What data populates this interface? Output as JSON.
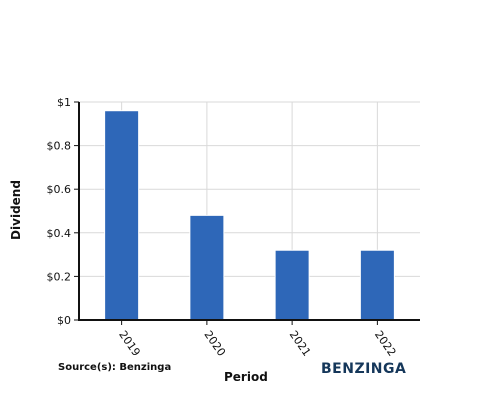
{
  "source_text": "Source(s): Benzinga",
  "brand_text": "BENZINGA",
  "colors": {
    "bar": "#2e67b8",
    "grid": "#d9d9d9",
    "axis": "#111111",
    "brand": "#15375a"
  },
  "chart_data": {
    "type": "bar",
    "categories": [
      "2019",
      "2020",
      "2021",
      "2022"
    ],
    "values": [
      0.96,
      0.48,
      0.32,
      0.32
    ],
    "title": "",
    "xlabel": "Period",
    "ylabel": "Dividend",
    "ylim": [
      0,
      1
    ],
    "yticks": [
      {
        "value": 0,
        "label": "$0"
      },
      {
        "value": 0.2,
        "label": "$0.2"
      },
      {
        "value": 0.4,
        "label": "$0.4"
      },
      {
        "value": 0.6,
        "label": "$0.6"
      },
      {
        "value": 0.8,
        "label": "$0.8"
      },
      {
        "value": 1,
        "label": "$1"
      }
    ],
    "grid": true,
    "legend": "none"
  }
}
